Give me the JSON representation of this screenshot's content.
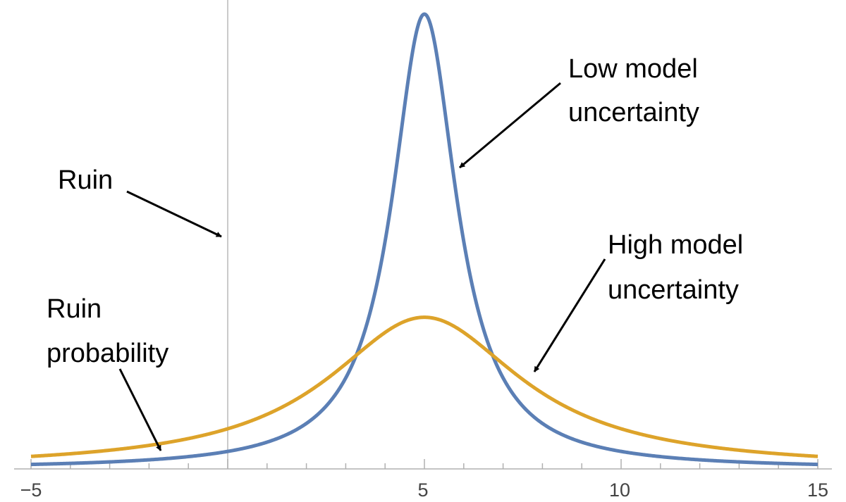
{
  "chart_data": {
    "type": "line",
    "title": "",
    "xlabel": "",
    "ylabel": "",
    "xlim": [
      -5,
      15
    ],
    "ylim": [
      0,
      0.31
    ],
    "grid": false,
    "x_ticks_labeled": [
      -5,
      5,
      10,
      15
    ],
    "x_tick_labels": [
      "−5",
      "5",
      "10",
      "15"
    ],
    "vertical_line_x": 0,
    "series": [
      {
        "color": "#5b7fb5",
        "distribution": "cauchy",
        "location": 5,
        "scale": 1,
        "peak": 0.3183,
        "x": [
          -5,
          -3,
          -1,
          0,
          1,
          2,
          3,
          4,
          5,
          6,
          7,
          8,
          9,
          10,
          12,
          15
        ],
        "values": [
          0.0032,
          0.0049,
          0.0086,
          0.0122,
          0.0187,
          0.0318,
          0.0637,
          0.1592,
          0.3183,
          0.1592,
          0.0637,
          0.0318,
          0.0187,
          0.0122,
          0.0064,
          0.0032
        ]
      },
      {
        "color": "#dda32a",
        "distribution": "cauchy",
        "location": 5,
        "scale": 3,
        "peak": 0.1061,
        "x": [
          -5,
          -3,
          -1,
          0,
          1,
          2,
          3,
          4,
          5,
          6,
          7,
          8,
          9,
          10,
          12,
          15
        ],
        "values": [
          0.0088,
          0.013,
          0.0212,
          0.028,
          0.0382,
          0.0531,
          0.0734,
          0.0955,
          0.1061,
          0.0955,
          0.0734,
          0.0531,
          0.0382,
          0.028,
          0.0165,
          0.0088
        ]
      }
    ],
    "annotations": [
      {
        "id": "low",
        "lines": [
          "Low model",
          "uncertainty"
        ]
      },
      {
        "id": "ruin",
        "lines": [
          "Ruin"
        ]
      },
      {
        "id": "high",
        "lines": [
          "High model",
          "uncertainty"
        ]
      },
      {
        "id": "prob",
        "lines": [
          "Ruin",
          "probability"
        ]
      }
    ]
  }
}
